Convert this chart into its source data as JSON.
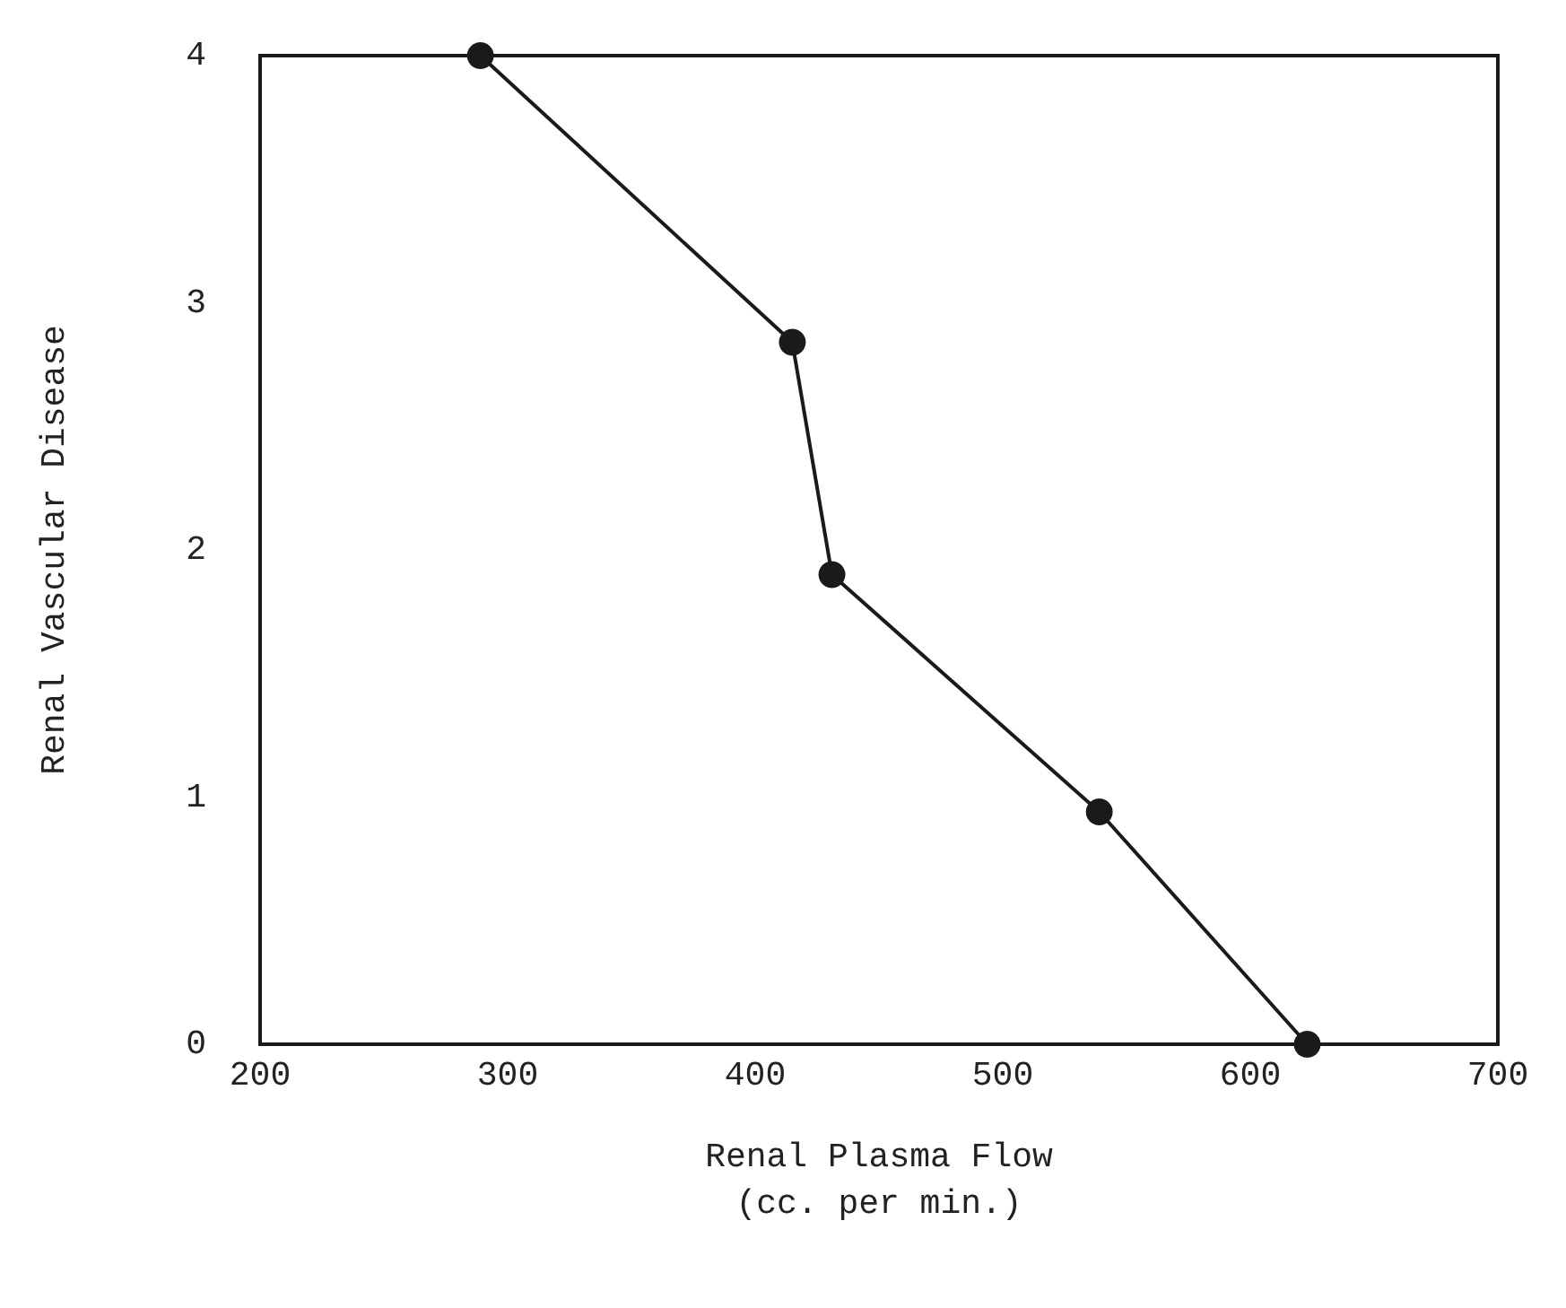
{
  "chart_data": {
    "type": "line",
    "xlabel": "Renal Plasma Flow\n(cc. per min.)",
    "ylabel": "Renal Vascular Disease",
    "x": [
      289,
      415,
      431,
      539,
      623
    ],
    "series": [
      {
        "color": "#1a1a1a",
        "values": [
          4,
          2.84,
          1.9,
          0.94,
          0
        ]
      }
    ],
    "xlim": [
      200,
      700
    ],
    "xticks": [
      200,
      300,
      400,
      500,
      600,
      700
    ],
    "ylim": [
      0,
      4
    ],
    "yticks": [
      0,
      1,
      2,
      3,
      4
    ],
    "grid": false,
    "marker": "circle",
    "line_style": "solid"
  }
}
